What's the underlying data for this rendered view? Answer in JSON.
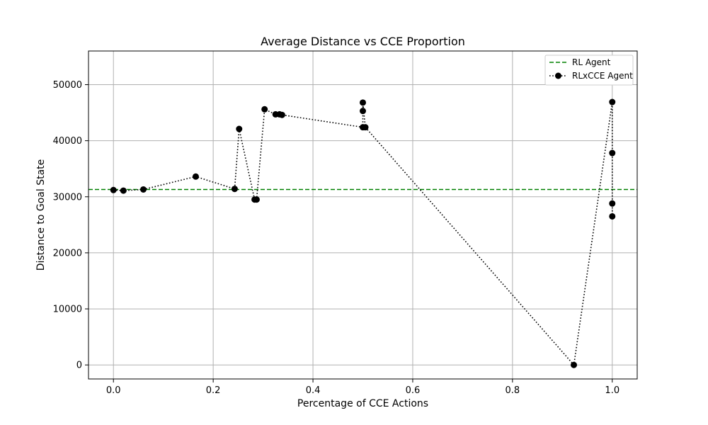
{
  "chart_data": {
    "type": "line",
    "title": "Average Distance vs CCE Proportion",
    "xlabel": "Percentage of CCE Actions",
    "ylabel": "Distance to Goal State",
    "xlim": [
      -0.05,
      1.05
    ],
    "ylim": [
      -2500,
      56000
    ],
    "xticks": [
      0.0,
      0.2,
      0.4,
      0.6,
      0.8,
      1.0
    ],
    "xtick_labels": [
      "0.0",
      "0.2",
      "0.4",
      "0.6",
      "0.8",
      "1.0"
    ],
    "yticks": [
      0,
      10000,
      20000,
      30000,
      40000,
      50000
    ],
    "ytick_labels": [
      "0",
      "10000",
      "20000",
      "30000",
      "40000",
      "50000"
    ],
    "grid": true,
    "legend_position": "top-right",
    "reference_line": {
      "name": "RL Agent",
      "y": 31300,
      "color": "#008000",
      "style": "dashed"
    },
    "series": [
      {
        "name": "RLxCCE Agent",
        "color": "#000000",
        "style": "dotted",
        "marker": "circle",
        "x": [
          0.0,
          0.02,
          0.06,
          0.165,
          0.243,
          0.252,
          0.283,
          0.287,
          0.303,
          0.325,
          0.333,
          0.338,
          0.5,
          0.5,
          0.5,
          0.505,
          0.923,
          1.0,
          1.0,
          1.0,
          1.0
        ],
        "y": [
          31200,
          31100,
          31300,
          33600,
          31400,
          42100,
          29500,
          29500,
          45600,
          44700,
          44700,
          44600,
          42400,
          45300,
          46800,
          42400,
          0,
          46900,
          37800,
          28800,
          26500
        ]
      }
    ]
  }
}
